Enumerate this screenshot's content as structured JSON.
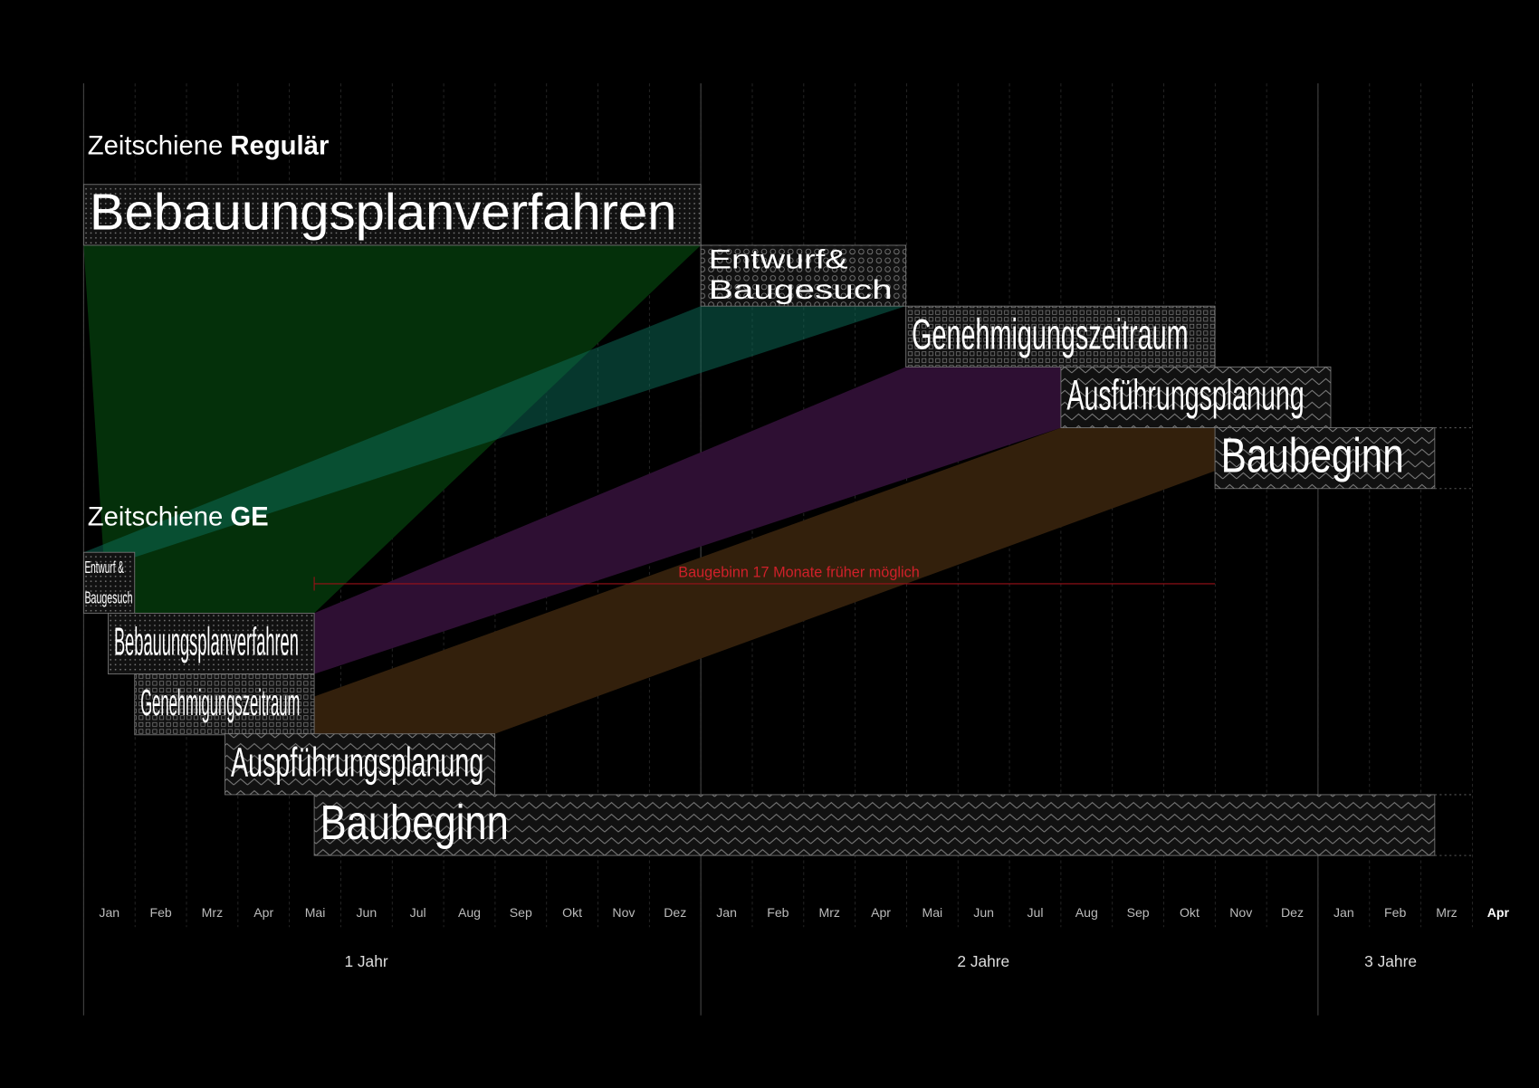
{
  "regular": {
    "title": {
      "prefix": "Zeitschiene ",
      "bold": "Regulär"
    },
    "phases": [
      {
        "label": [
          "Bebauungsplanverfahren"
        ]
      },
      {
        "label": [
          "Entwurf&",
          "Baugesuch"
        ]
      },
      {
        "label": [
          "Genehmigungszeitraum"
        ]
      },
      {
        "label": [
          "Ausführungsplanung"
        ]
      },
      {
        "label": [
          "Baubeginn"
        ]
      }
    ]
  },
  "ge": {
    "title": {
      "prefix": "Zeitschiene ",
      "bold": "GE"
    },
    "phases": [
      {
        "label": [
          "Entwurf &",
          "Baugesuch"
        ]
      },
      {
        "label": [
          "Bebauungsplanverfahren"
        ]
      },
      {
        "label": [
          "Genehmigungszeitraum"
        ]
      },
      {
        "label": [
          "Auspführungsplanung"
        ]
      },
      {
        "label": [
          "Baubeginn"
        ]
      }
    ]
  },
  "annotation": "Baugebinn 17 Monate früher möglich",
  "axis": {
    "months": [
      "Jan",
      "Feb",
      "Mrz",
      "Apr",
      "Mai",
      "Jun",
      "Jul",
      "Aug",
      "Sep",
      "Okt",
      "Nov",
      "Dez",
      "Jan",
      "Feb",
      "Mrz",
      "Apr",
      "Mai",
      "Jun",
      "Jul",
      "Aug",
      "Sep",
      "Okt",
      "Nov",
      "Dez",
      "Jan",
      "Feb",
      "Mrz",
      "Apr"
    ],
    "years": [
      "1 Jahr",
      "2 Jahre",
      "3 Jahre"
    ]
  }
}
